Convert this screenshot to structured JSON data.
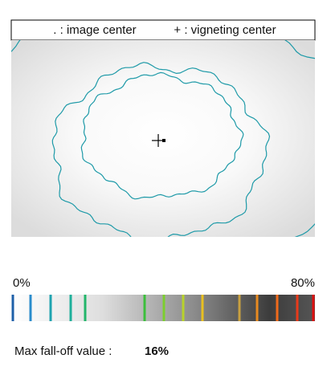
{
  "legend": {
    "image_center": ". : image center",
    "vignetting_center": "+ : vigneting center"
  },
  "scale": {
    "min_label": "0%",
    "max_label": "80%"
  },
  "result": {
    "label": "Max fall-off value :",
    "value": "16%"
  }
}
